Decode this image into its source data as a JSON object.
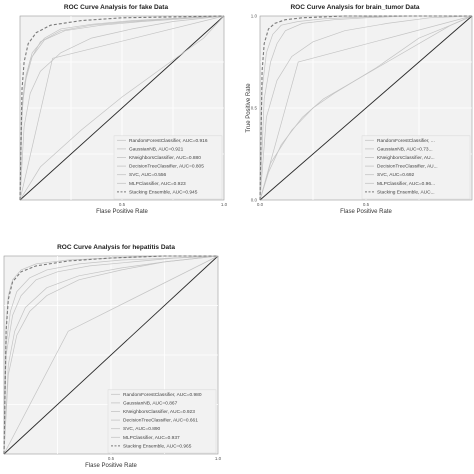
{
  "colors": {
    "plot_bg": "#f2f2f2",
    "grid": "#ffffff",
    "curve": "#c4c4c4",
    "stacking": "#7a7a7a",
    "diagonal": "#2b2b2b",
    "frame": "#9a9a9a"
  },
  "chart_data": [
    {
      "type": "line",
      "title": "ROC Curve Analysis for fake Data",
      "xlabel": "Flase Positive Rate",
      "ylabel": "",
      "xlim": [
        0,
        1
      ],
      "ylim": [
        0,
        1
      ],
      "x_ticks": [
        "0.5",
        "1.0"
      ],
      "x_tick_values": [
        0.5,
        1.0
      ],
      "y_ticks": [],
      "y_tick_values": [],
      "grid": true,
      "legend_position": "bottom-right",
      "series": [
        {
          "name": "RandomForestClassifier, AUC=0.916",
          "x": [
            0,
            0.01,
            0.02,
            0.05,
            0.1,
            0.2,
            0.35,
            0.55,
            0.75,
            1
          ],
          "y": [
            0,
            0.45,
            0.62,
            0.76,
            0.86,
            0.92,
            0.95,
            0.97,
            0.985,
            1
          ]
        },
        {
          "name": "GaussianNB, AUC=0.921",
          "x": [
            0,
            0.01,
            0.03,
            0.06,
            0.12,
            0.22,
            0.4,
            0.6,
            0.8,
            1
          ],
          "y": [
            0,
            0.5,
            0.66,
            0.78,
            0.87,
            0.92,
            0.95,
            0.97,
            0.985,
            1
          ]
        },
        {
          "name": "KNeighborsClassifier, AUC=0.880",
          "x": [
            0,
            0.02,
            0.05,
            0.1,
            0.2,
            0.35,
            0.55,
            0.75,
            1
          ],
          "y": [
            0,
            0.4,
            0.58,
            0.7,
            0.8,
            0.88,
            0.93,
            0.97,
            1
          ]
        },
        {
          "name": "DecisionTreeClassifier, AUC=0.805",
          "x": [
            0,
            0.16,
            1
          ],
          "y": [
            0,
            0.77,
            1
          ]
        },
        {
          "name": "SVC, AUC=0.556",
          "x": [
            0,
            0.1,
            0.3,
            0.5,
            0.7,
            0.9,
            1
          ],
          "y": [
            0,
            0.18,
            0.38,
            0.56,
            0.72,
            0.88,
            1
          ]
        },
        {
          "name": "MLPClassifier, AUC=0.923",
          "x": [
            0,
            0.01,
            0.03,
            0.06,
            0.12,
            0.2,
            0.35,
            0.55,
            0.8,
            1
          ],
          "y": [
            0,
            0.52,
            0.68,
            0.8,
            0.88,
            0.93,
            0.955,
            0.975,
            0.99,
            1
          ]
        },
        {
          "name": "Stacking Ensemble, AUC=0.945",
          "x": [
            0,
            0.01,
            0.02,
            0.04,
            0.08,
            0.15,
            0.3,
            0.5,
            0.75,
            1
          ],
          "y": [
            0,
            0.6,
            0.75,
            0.85,
            0.91,
            0.95,
            0.975,
            0.99,
            0.995,
            1
          ],
          "dashed": true
        }
      ]
    },
    {
      "type": "line",
      "title": "ROC Curve Analysis for brain_tumor Data",
      "xlabel": "Flase Positive Rate",
      "ylabel": "True Positive Rate",
      "xlim": [
        0,
        1
      ],
      "ylim": [
        0,
        1
      ],
      "x_ticks": [
        "0.0",
        "0.5"
      ],
      "x_tick_values": [
        0.0,
        0.5
      ],
      "y_ticks": [
        "0.0",
        "0.5",
        "1.0"
      ],
      "y_tick_values": [
        0.0,
        0.5,
        1.0
      ],
      "grid": true,
      "legend_position": "bottom-right",
      "series": [
        {
          "name": "RandomForestClassifier, ...",
          "x": [
            0,
            0.02,
            0.05,
            0.08,
            0.12,
            0.2,
            0.35,
            0.5,
            0.7,
            1
          ],
          "y": [
            0,
            0.55,
            0.75,
            0.85,
            0.92,
            0.96,
            0.98,
            0.99,
            1,
            1
          ]
        },
        {
          "name": "GaussianNB, AUC=0.73...",
          "x": [
            0,
            0.05,
            0.15,
            0.25,
            0.35,
            0.45,
            0.55,
            0.65,
            0.75,
            0.9,
            1
          ],
          "y": [
            0,
            0.2,
            0.38,
            0.5,
            0.58,
            0.65,
            0.72,
            0.8,
            0.88,
            0.95,
            1
          ]
        },
        {
          "name": "KNeighborsClassifier, AU...",
          "x": [
            0,
            0.03,
            0.08,
            0.15,
            0.25,
            0.4,
            0.6,
            0.8,
            1
          ],
          "y": [
            0,
            0.45,
            0.65,
            0.78,
            0.86,
            0.92,
            0.96,
            0.99,
            1
          ]
        },
        {
          "name": "DecisionTreeClassifier, AU...",
          "x": [
            0,
            0.18,
            1
          ],
          "y": [
            0,
            0.75,
            1
          ]
        },
        {
          "name": "SVC, AUC=0.692",
          "x": [
            0,
            0.04,
            0.1,
            0.2,
            0.3,
            0.45,
            0.6,
            0.75,
            0.9,
            1
          ],
          "y": [
            0,
            0.15,
            0.3,
            0.45,
            0.55,
            0.65,
            0.75,
            0.85,
            0.95,
            1
          ]
        },
        {
          "name": "MLPClassifier, AUC=0.96...",
          "x": [
            0,
            0.01,
            0.03,
            0.06,
            0.1,
            0.18,
            0.3,
            0.5,
            0.75,
            1
          ],
          "y": [
            0,
            0.6,
            0.8,
            0.9,
            0.95,
            0.97,
            0.985,
            0.995,
            1,
            1
          ]
        },
        {
          "name": "Stacking Ensemble, AUC...",
          "x": [
            0,
            0.01,
            0.02,
            0.04,
            0.07,
            0.12,
            0.2,
            0.4,
            0.7,
            1
          ],
          "y": [
            0,
            0.7,
            0.85,
            0.93,
            0.96,
            0.98,
            0.99,
            1,
            1,
            1
          ],
          "dashed": true
        }
      ]
    },
    {
      "type": "line",
      "title": "ROC Curve Analysis for hepatitis Data",
      "xlabel": "Flase Positive Rate",
      "ylabel": "",
      "xlim": [
        0,
        1
      ],
      "ylim": [
        0,
        1
      ],
      "x_ticks": [
        "0.5",
        "1.0"
      ],
      "x_tick_values": [
        0.5,
        1.0
      ],
      "y_ticks": [],
      "y_tick_values": [],
      "grid": true,
      "legend_position": "bottom-right",
      "series": [
        {
          "name": "RandomForestClassifier, AUC=0.980",
          "x": [
            0,
            0.01,
            0.02,
            0.04,
            0.08,
            0.15,
            0.3,
            0.5,
            0.75,
            1
          ],
          "y": [
            0,
            0.65,
            0.8,
            0.88,
            0.93,
            0.96,
            0.98,
            0.99,
            1,
            1
          ]
        },
        {
          "name": "GaussianNB, AUC=0.867",
          "x": [
            0,
            0.02,
            0.06,
            0.12,
            0.2,
            0.35,
            0.55,
            0.75,
            1
          ],
          "y": [
            0,
            0.4,
            0.6,
            0.72,
            0.8,
            0.88,
            0.93,
            0.97,
            1
          ]
        },
        {
          "name": "KNeighborsClassifier, AUC=0.923",
          "x": [
            0,
            0.01,
            0.04,
            0.08,
            0.15,
            0.25,
            0.4,
            0.6,
            0.8,
            1
          ],
          "y": [
            0,
            0.5,
            0.7,
            0.8,
            0.88,
            0.92,
            0.95,
            0.97,
            0.99,
            1
          ]
        },
        {
          "name": "DecisionTreeClassifier, AUC=0.661",
          "x": [
            0,
            0.3,
            1
          ],
          "y": [
            0,
            0.62,
            1
          ]
        },
        {
          "name": "SVC, AUC=0.890",
          "x": [
            0,
            0.02,
            0.05,
            0.1,
            0.2,
            0.35,
            0.55,
            0.75,
            1
          ],
          "y": [
            0,
            0.45,
            0.62,
            0.74,
            0.84,
            0.9,
            0.94,
            0.97,
            1
          ]
        },
        {
          "name": "MLPClassifier, AUC=0.937",
          "x": [
            0,
            0.01,
            0.03,
            0.06,
            0.12,
            0.2,
            0.35,
            0.55,
            0.8,
            1
          ],
          "y": [
            0,
            0.55,
            0.72,
            0.82,
            0.89,
            0.93,
            0.96,
            0.98,
            0.99,
            1
          ]
        },
        {
          "name": "Stacking Ensemble, AUC=0.965",
          "x": [
            0,
            0.01,
            0.02,
            0.04,
            0.08,
            0.15,
            0.3,
            0.5,
            0.75,
            1
          ],
          "y": [
            0,
            0.62,
            0.78,
            0.87,
            0.92,
            0.95,
            0.975,
            0.99,
            1,
            1
          ],
          "dashed": true
        }
      ]
    }
  ]
}
